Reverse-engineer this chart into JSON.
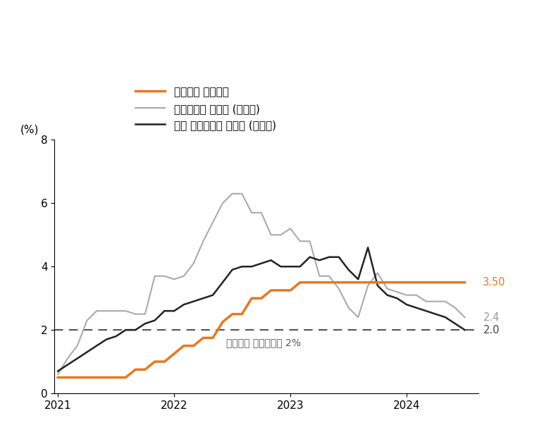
{
  "ylabel": "(%)",
  "ylim": [
    0,
    8
  ],
  "yticks": [
    0,
    2,
    4,
    6,
    8
  ],
  "xlim_start": 2020.97,
  "xlim_end": 2024.62,
  "xticks": [
    2021,
    2022,
    2023,
    2024
  ],
  "dashed_line_y": 2.0,
  "dashed_line_label": "한국은행 물가목표치 2%",
  "end_labels": [
    {
      "value": 3.5,
      "text": "3.50",
      "color": "#E87722"
    },
    {
      "value": 2.4,
      "text": "2.4",
      "color": "#999999"
    },
    {
      "value": 2.0,
      "text": "2.0",
      "color": "#444444"
    }
  ],
  "legend": [
    {
      "label": "한국은행 기준금리",
      "color": "#E87722",
      "lw": 2.5
    },
    {
      "label": "소비자물가 상승률 (전년비)",
      "color": "#AAAAAA",
      "lw": 1.5
    },
    {
      "label": "근원 소비자물가 상승률 (전년비)",
      "color": "#222222",
      "lw": 1.8
    }
  ],
  "base_rate": {
    "x": [
      2021.0,
      2021.083,
      2021.167,
      2021.25,
      2021.333,
      2021.417,
      2021.5,
      2021.583,
      2021.667,
      2021.75,
      2021.833,
      2021.917,
      2022.0,
      2022.083,
      2022.167,
      2022.25,
      2022.333,
      2022.417,
      2022.5,
      2022.583,
      2022.667,
      2022.75,
      2022.833,
      2022.917,
      2023.0,
      2023.083,
      2023.167,
      2023.25,
      2023.333,
      2023.417,
      2023.5,
      2023.583,
      2023.667,
      2023.75,
      2023.833,
      2023.917,
      2024.0,
      2024.083,
      2024.167,
      2024.25,
      2024.333,
      2024.417,
      2024.5
    ],
    "y": [
      0.5,
      0.5,
      0.5,
      0.5,
      0.5,
      0.5,
      0.5,
      0.5,
      0.75,
      0.75,
      1.0,
      1.0,
      1.25,
      1.5,
      1.5,
      1.75,
      1.75,
      2.25,
      2.5,
      2.5,
      3.0,
      3.0,
      3.25,
      3.25,
      3.25,
      3.5,
      3.5,
      3.5,
      3.5,
      3.5,
      3.5,
      3.5,
      3.5,
      3.5,
      3.5,
      3.5,
      3.5,
      3.5,
      3.5,
      3.5,
      3.5,
      3.5,
      3.5
    ],
    "color": "#E87722",
    "lw": 2.5
  },
  "cpi": {
    "x": [
      2021.0,
      2021.083,
      2021.167,
      2021.25,
      2021.333,
      2021.417,
      2021.5,
      2021.583,
      2021.667,
      2021.75,
      2021.833,
      2021.917,
      2022.0,
      2022.083,
      2022.167,
      2022.25,
      2022.333,
      2022.417,
      2022.5,
      2022.583,
      2022.667,
      2022.75,
      2022.833,
      2022.917,
      2023.0,
      2023.083,
      2023.167,
      2023.25,
      2023.333,
      2023.417,
      2023.5,
      2023.583,
      2023.667,
      2023.75,
      2023.833,
      2023.917,
      2024.0,
      2024.083,
      2024.167,
      2024.25,
      2024.333,
      2024.417,
      2024.5
    ],
    "y": [
      0.6,
      1.1,
      1.5,
      2.3,
      2.6,
      2.6,
      2.6,
      2.6,
      2.5,
      2.5,
      3.7,
      3.7,
      3.6,
      3.7,
      4.1,
      4.8,
      5.4,
      6.0,
      6.3,
      6.3,
      5.7,
      5.7,
      5.0,
      5.0,
      5.2,
      4.8,
      4.8,
      3.7,
      3.7,
      3.3,
      2.7,
      2.4,
      3.4,
      3.8,
      3.3,
      3.2,
      3.1,
      3.1,
      2.9,
      2.9,
      2.9,
      2.7,
      2.4
    ],
    "color": "#AAAAAA",
    "lw": 1.5
  },
  "core_cpi": {
    "x": [
      2021.0,
      2021.083,
      2021.167,
      2021.25,
      2021.333,
      2021.417,
      2021.5,
      2021.583,
      2021.667,
      2021.75,
      2021.833,
      2021.917,
      2022.0,
      2022.083,
      2022.167,
      2022.25,
      2022.333,
      2022.417,
      2022.5,
      2022.583,
      2022.667,
      2022.75,
      2022.833,
      2022.917,
      2023.0,
      2023.083,
      2023.167,
      2023.25,
      2023.333,
      2023.417,
      2023.5,
      2023.583,
      2023.667,
      2023.75,
      2023.833,
      2023.917,
      2024.0,
      2024.083,
      2024.167,
      2024.25,
      2024.333,
      2024.417,
      2024.5
    ],
    "y": [
      0.7,
      0.9,
      1.1,
      1.3,
      1.5,
      1.7,
      1.8,
      2.0,
      2.0,
      2.2,
      2.3,
      2.6,
      2.6,
      2.8,
      2.9,
      3.0,
      3.1,
      3.5,
      3.9,
      4.0,
      4.0,
      4.1,
      4.2,
      4.0,
      4.0,
      4.0,
      4.3,
      4.2,
      4.3,
      4.3,
      3.9,
      3.6,
      4.6,
      3.4,
      3.1,
      3.0,
      2.8,
      2.7,
      2.6,
      2.5,
      2.4,
      2.2,
      2.0
    ],
    "color": "#222222",
    "lw": 1.8
  },
  "background_color": "#FFFFFF"
}
